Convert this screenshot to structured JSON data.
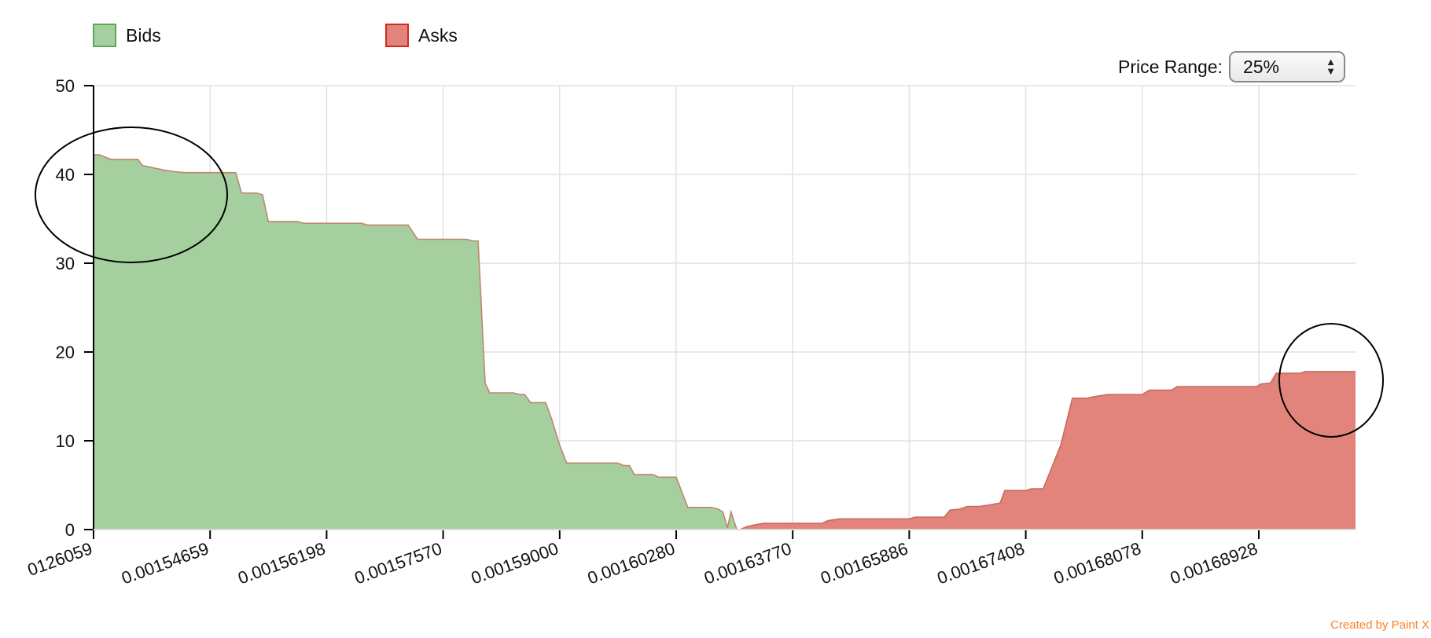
{
  "legend": [
    {
      "label": "Bids",
      "fill": "#a5cf9f",
      "border": "#5ea85a"
    },
    {
      "label": "Asks",
      "fill": "#e2847b",
      "border": "#cf2b22"
    }
  ],
  "price_range": {
    "label": "Price Range:",
    "value": "25%"
  },
  "credit": "Created by Paint X",
  "chart_data": {
    "type": "area",
    "title": "",
    "xlabel": "",
    "ylabel": "",
    "ylim": [
      0,
      50
    ],
    "yticks": [
      "0",
      "10",
      "20",
      "30",
      "40",
      "50"
    ],
    "xticks": [
      "0126059",
      "0.00154659",
      "0.00156198",
      "0.00157570",
      "0.00159000",
      "0.00160280",
      "0.00163770",
      "0.00165886",
      "0.00167408",
      "0.00168078",
      "0.00168928"
    ],
    "grid": true,
    "series": [
      {
        "name": "Bids",
        "color": "#a5cf9f",
        "stroke": "#c0866d",
        "points": [
          [
            0,
            42.2
          ],
          [
            0.05,
            42.2
          ],
          [
            0.15,
            41.7
          ],
          [
            0.38,
            41.7
          ],
          [
            0.42,
            41.0
          ],
          [
            0.6,
            40.5
          ],
          [
            0.7,
            40.3
          ],
          [
            0.78,
            40.2
          ],
          [
            1.0,
            40.2
          ],
          [
            1.07,
            40.2
          ],
          [
            1.22,
            40.2
          ],
          [
            1.27,
            37.9
          ],
          [
            1.4,
            37.9
          ],
          [
            1.45,
            37.7
          ],
          [
            1.5,
            34.7
          ],
          [
            1.75,
            34.7
          ],
          [
            1.8,
            34.5
          ],
          [
            2.3,
            34.5
          ],
          [
            2.35,
            34.3
          ],
          [
            2.7,
            34.3
          ],
          [
            2.78,
            32.7
          ],
          [
            3.2,
            32.7
          ],
          [
            3.26,
            32.5
          ],
          [
            3.3,
            32.5
          ],
          [
            3.36,
            16.5
          ],
          [
            3.4,
            15.4
          ],
          [
            3.6,
            15.4
          ],
          [
            3.66,
            15.2
          ],
          [
            3.7,
            15.2
          ],
          [
            3.75,
            14.3
          ],
          [
            3.88,
            14.3
          ],
          [
            3.93,
            12.5
          ],
          [
            4.0,
            9.5
          ],
          [
            4.06,
            7.5
          ],
          [
            4.5,
            7.5
          ],
          [
            4.55,
            7.2
          ],
          [
            4.6,
            7.2
          ],
          [
            4.64,
            6.2
          ],
          [
            4.8,
            6.2
          ],
          [
            4.85,
            5.9
          ],
          [
            5.0,
            5.9
          ],
          [
            5.1,
            2.5
          ],
          [
            5.3,
            2.5
          ],
          [
            5.36,
            2.3
          ],
          [
            5.4,
            2.0
          ],
          [
            5.44,
            0.2
          ],
          [
            5.47,
            2.0
          ],
          [
            5.52,
            0
          ]
        ]
      },
      {
        "name": "Asks",
        "color": "#e2847b",
        "stroke": "#c96a5f",
        "points": [
          [
            5.55,
            0
          ],
          [
            5.6,
            0.3
          ],
          [
            5.66,
            0.5
          ],
          [
            5.75,
            0.7
          ],
          [
            6.0,
            0.7
          ],
          [
            6.25,
            0.7
          ],
          [
            6.3,
            1.0
          ],
          [
            6.4,
            1.2
          ],
          [
            6.8,
            1.2
          ],
          [
            7.0,
            1.2
          ],
          [
            7.05,
            1.4
          ],
          [
            7.3,
            1.4
          ],
          [
            7.35,
            2.2
          ],
          [
            7.43,
            2.3
          ],
          [
            7.5,
            2.6
          ],
          [
            7.6,
            2.6
          ],
          [
            7.7,
            2.8
          ],
          [
            7.78,
            3.0
          ],
          [
            7.82,
            4.4
          ],
          [
            8.0,
            4.4
          ],
          [
            8.05,
            4.6
          ],
          [
            8.15,
            4.6
          ],
          [
            8.3,
            9.5
          ],
          [
            8.4,
            14.8
          ],
          [
            8.52,
            14.8
          ],
          [
            8.6,
            15.0
          ],
          [
            8.7,
            15.2
          ],
          [
            8.9,
            15.2
          ],
          [
            9.0,
            15.2
          ],
          [
            9.06,
            15.7
          ],
          [
            9.25,
            15.7
          ],
          [
            9.3,
            16.1
          ],
          [
            9.98,
            16.1
          ],
          [
            10.02,
            16.4
          ],
          [
            10.1,
            16.5
          ],
          [
            10.15,
            17.6
          ],
          [
            10.35,
            17.6
          ],
          [
            10.4,
            17.8
          ],
          [
            10.83,
            17.8
          ]
        ]
      }
    ]
  }
}
